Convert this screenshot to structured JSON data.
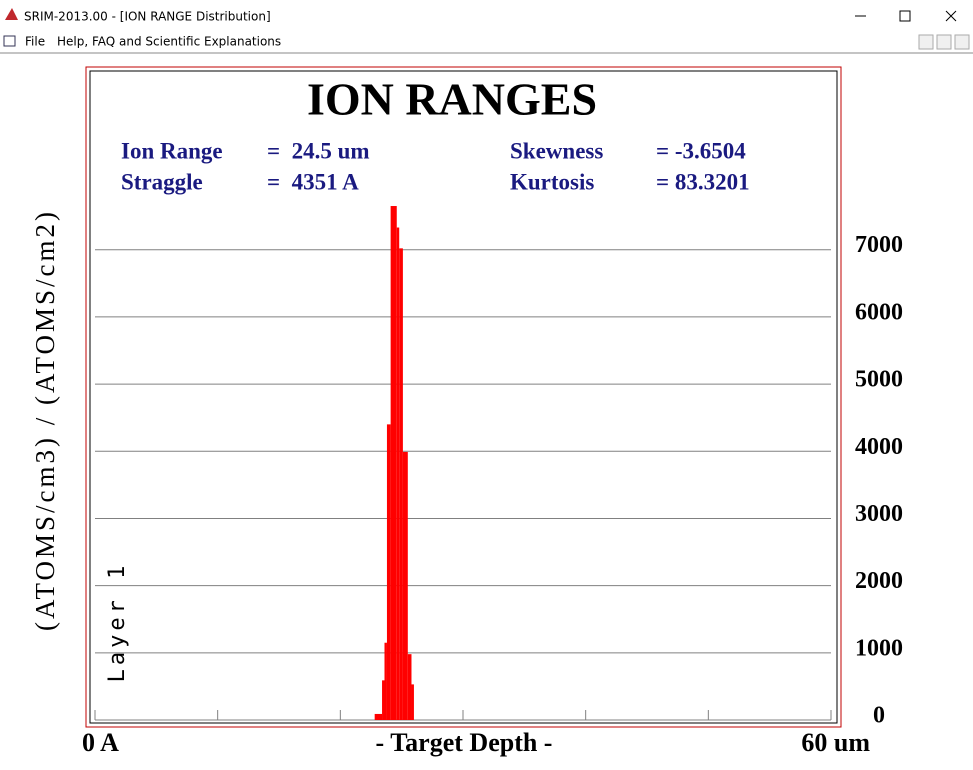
{
  "window": {
    "title": "SRIM-2013.00 - [ION RANGE Distribution]",
    "menu": [
      "File",
      "Help, FAQ and Scientific Explanations"
    ]
  },
  "chart_data": {
    "type": "histogram",
    "title": "ION RANGES",
    "stats": [
      {
        "name": "Ion Range",
        "value": "=  24.5 um"
      },
      {
        "name": "Straggle",
        "value": "=  4351 A"
      },
      {
        "name": "Skewness",
        "value": "= -3.6504"
      },
      {
        "name": "Kurtosis",
        "value": "= 83.3201"
      }
    ],
    "xlabel": "- Target Depth -",
    "ylabel": "(ATOMS/cm3) / (ATOMS/cm2)",
    "annotation": "Layer 1",
    "bins": [
      22.8,
      23.4,
      23.6,
      23.8,
      24.1,
      24.6,
      24.8,
      25.1,
      25.5,
      25.8,
      26.0
    ],
    "values": [
      90,
      590,
      1150,
      4400,
      7650,
      7330,
      7020,
      3990,
      980,
      530
    ],
    "color": "#ff0000",
    "xlim": [
      0,
      60
    ],
    "xticks": [
      {
        "value": 0,
        "label": "0 A"
      },
      {
        "value": 10,
        "label": null
      },
      {
        "value": 20,
        "label": null
      },
      {
        "value": 30,
        "label": null
      },
      {
        "value": 40,
        "label": null
      },
      {
        "value": 50,
        "label": null
      },
      {
        "value": 60,
        "label": "60 um"
      }
    ],
    "ylim": [
      0,
      9600
    ],
    "yticks": [
      0,
      1000,
      2000,
      3000,
      4000,
      5000,
      6000,
      7000
    ],
    "grid": true
  }
}
